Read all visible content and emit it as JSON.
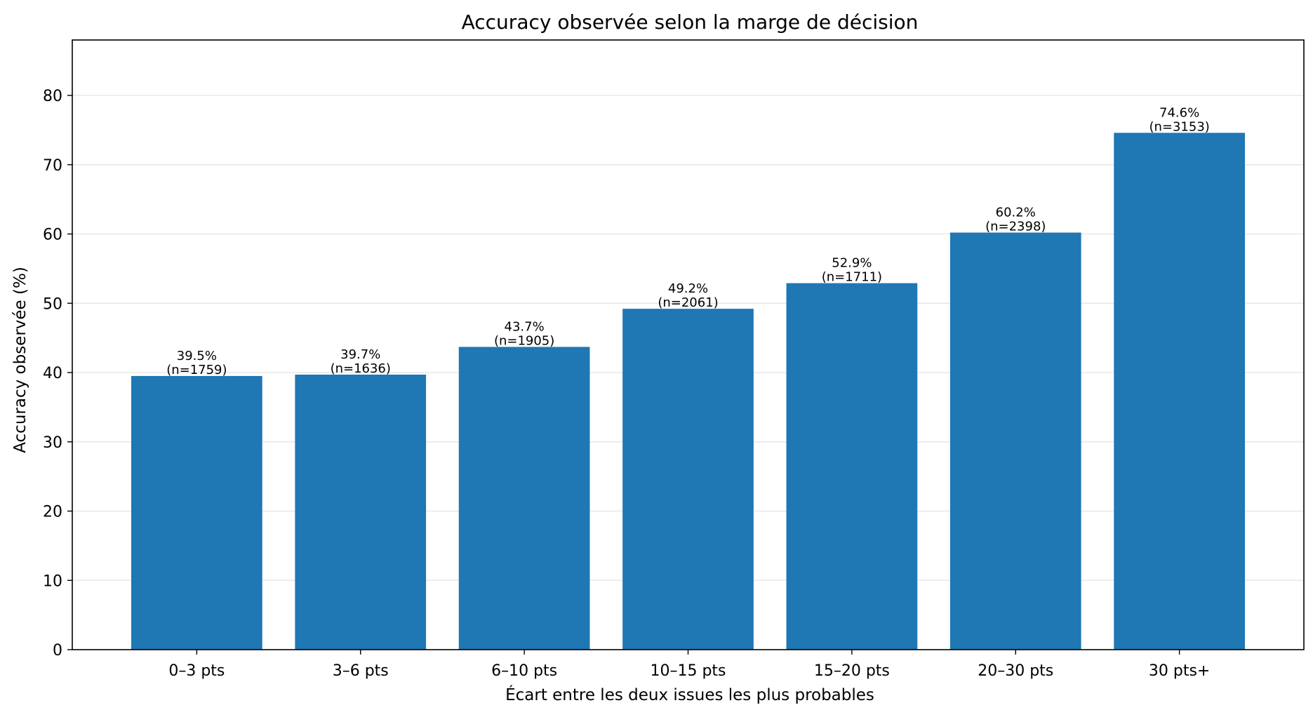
{
  "chart_data": {
    "type": "bar",
    "title": "Accuracy observée selon la marge de décision",
    "xlabel": "Écart entre les deux issues les plus probables",
    "ylabel": "Accuracy observée (%)",
    "categories": [
      "0–3 pts",
      "3–6 pts",
      "6–10 pts",
      "10–15 pts",
      "15–20 pts",
      "20–30 pts",
      "30 pts+"
    ],
    "values": [
      39.5,
      39.7,
      43.7,
      49.2,
      52.9,
      60.2,
      74.6
    ],
    "counts": [
      1759,
      1636,
      1905,
      2061,
      1711,
      2398,
      3153
    ],
    "value_labels": [
      "39.5%",
      "39.7%",
      "43.7%",
      "49.2%",
      "52.9%",
      "60.2%",
      "74.6%"
    ],
    "count_labels": [
      "(n=1759)",
      "(n=1636)",
      "(n=1905)",
      "(n=2061)",
      "(n=1711)",
      "(n=2398)",
      "(n=3153)"
    ],
    "ylim": [
      0,
      88
    ],
    "yticks": [
      0,
      10,
      20,
      30,
      40,
      50,
      60,
      70,
      80
    ],
    "grid": "horizontal",
    "bar_color": "#1f77b4",
    "grid_color": "#e3e3e3"
  }
}
